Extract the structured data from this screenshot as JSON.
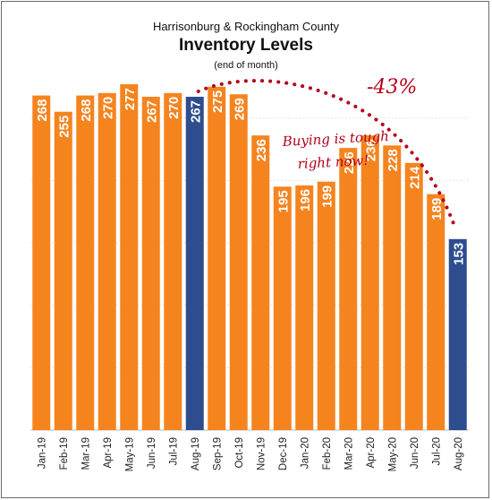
{
  "subtitle": "Harrisonburg & Rockingham County",
  "title": "Inventory Levels",
  "note": "(end of month)",
  "chart_data": {
    "type": "bar",
    "categories": [
      "Jan-19",
      "Feb-19",
      "Mar-19",
      "Apr-19",
      "May-19",
      "Jun-19",
      "Jul-19",
      "Aug-19",
      "Sep-19",
      "Oct-19",
      "Nov-19",
      "Dec-19",
      "Jan-20",
      "Feb-20",
      "Mar-20",
      "Apr-20",
      "May-20",
      "Jun-20",
      "Jul-20",
      "Aug-20"
    ],
    "values": [
      268,
      255,
      268,
      270,
      277,
      267,
      270,
      267,
      275,
      269,
      236,
      195,
      196,
      199,
      226,
      236,
      228,
      214,
      189,
      153
    ],
    "highlight": [
      "Aug-19",
      "Aug-20"
    ],
    "ylim": [
      0,
      300
    ],
    "grid": true,
    "colors": {
      "bar": "#f5841f",
      "highlight": "#2e4d8e",
      "annotation": "#b3001b",
      "grid": "#e6e6e6"
    },
    "annotations": {
      "change": "-43%",
      "comment_line1": "Buying is tough",
      "comment_line2": "right now!"
    }
  }
}
